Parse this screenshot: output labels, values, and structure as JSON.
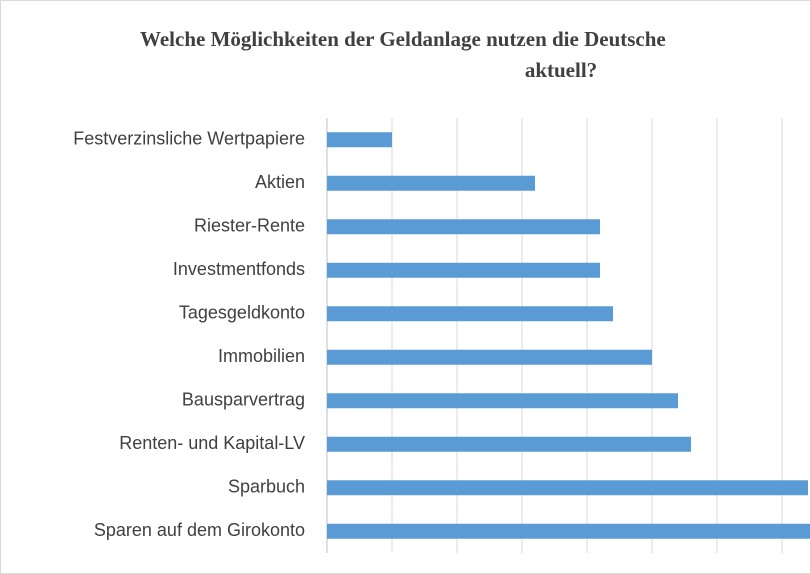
{
  "chart_data": {
    "type": "hbar",
    "title": [
      "Welche Möglichkeiten der Geldanlage nutzen die Deutsche",
      "aktuell?"
    ],
    "categories": [
      "Festverzinsliche Wertpapiere",
      "Aktien",
      "Riester-Rente",
      "Investmentfonds",
      "Tagesgeldkonto",
      "Immobilien",
      "Bausparvertrag",
      "Renten- und Kapital-LV",
      "Sparbuch",
      "Sparen auf dem Girokonto"
    ],
    "values": [
      5,
      16,
      21,
      21,
      22,
      25,
      27,
      28,
      37,
      38
    ],
    "color": "#5b9bd5",
    "xlim": [
      0,
      40
    ],
    "xticks": [
      0,
      5,
      10,
      15,
      20,
      25,
      30,
      35
    ],
    "grid": true
  }
}
